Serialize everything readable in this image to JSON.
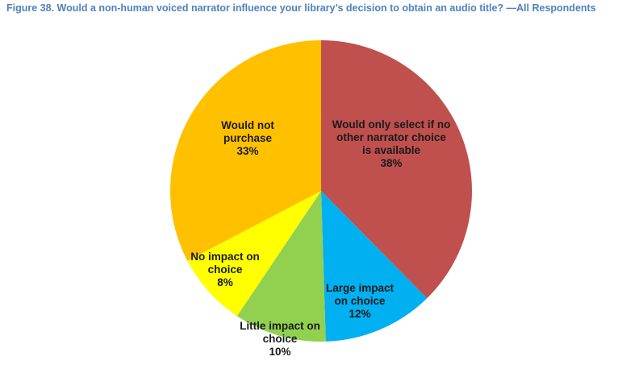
{
  "chart_data": {
    "type": "pie",
    "title": "Figure 38. Would a non-human voiced narrator influence your library’s decision to obtain an audio title? —All Respondents",
    "categories": [
      "Would only select if no other narrator choice is available",
      "Large impact on choice",
      "Little impact on choice",
      "No impact on choice",
      "Would not purchase"
    ],
    "values": [
      38,
      12,
      10,
      8,
      33
    ],
    "value_labels": [
      "38%",
      "12%",
      "10%",
      "8%",
      "33%"
    ],
    "colors": [
      "#c0504d",
      "#00b0f0",
      "#92d050",
      "#ffff00",
      "#ffc000"
    ]
  }
}
